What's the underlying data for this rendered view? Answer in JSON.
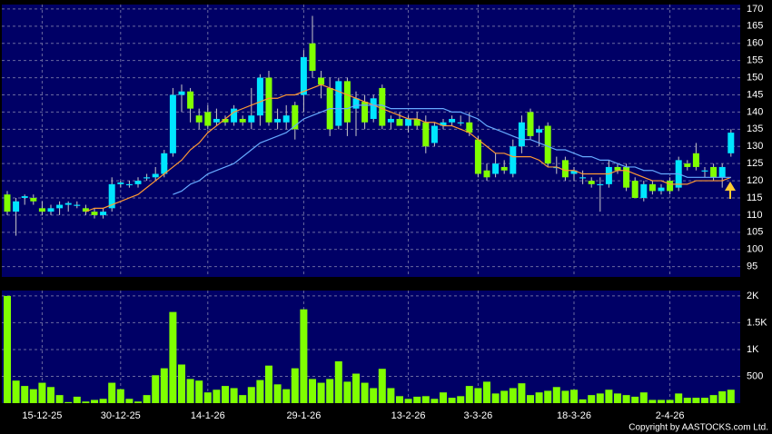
{
  "chart_data": [
    {
      "type": "candlestick",
      "open": [
        116,
        111,
        115,
        115,
        112,
        111,
        112,
        113,
        113,
        112,
        111,
        110,
        112,
        119,
        119,
        119,
        121,
        121,
        122,
        128,
        145,
        146,
        139,
        140,
        137,
        138,
        137,
        138,
        137,
        139,
        150,
        137,
        137,
        142,
        145,
        160,
        150,
        147,
        136,
        149,
        141,
        143,
        138,
        147,
        137,
        138,
        136,
        138,
        137,
        131,
        136,
        137,
        137,
        137,
        132,
        123,
        122,
        124,
        122,
        130,
        140,
        134,
        136,
        124,
        126,
        122,
        121,
        120,
        119,
        119,
        124,
        124,
        120,
        115,
        119,
        117,
        120,
        118,
        125,
        128,
        123,
        124,
        121,
        128
      ],
      "high": [
        117,
        115,
        116,
        116,
        114,
        113,
        114,
        114,
        114,
        113,
        112,
        112,
        121,
        120,
        120,
        121,
        122,
        124,
        129,
        147,
        148,
        147,
        141,
        142,
        141,
        139,
        142,
        139,
        147,
        151,
        152,
        141,
        142,
        143,
        158,
        168,
        152,
        150,
        150,
        150,
        146,
        145,
        145,
        148,
        139,
        140,
        139,
        140,
        139,
        137,
        138,
        139,
        139,
        140,
        133,
        125,
        128,
        126,
        132,
        139,
        141,
        136,
        137,
        127,
        127,
        124,
        123,
        121,
        121,
        126,
        125,
        125,
        121,
        120,
        120,
        119,
        121,
        127,
        126,
        131,
        124,
        125,
        125,
        135
      ],
      "low": [
        110,
        104,
        113,
        113,
        110,
        110,
        110,
        111,
        112,
        110,
        109,
        109,
        111,
        118,
        118,
        118,
        120,
        120,
        121,
        127,
        140,
        137,
        135,
        135,
        136,
        136,
        136,
        136,
        135,
        136,
        136,
        135,
        135,
        132,
        140,
        150,
        144,
        133,
        135,
        133,
        133,
        135,
        137,
        135,
        135,
        136,
        134,
        135,
        128,
        130,
        135,
        136,
        136,
        133,
        121,
        120,
        121,
        122,
        121,
        128,
        132,
        130,
        124,
        122,
        120,
        120,
        119,
        118,
        111,
        118,
        122,
        117,
        115,
        114,
        116,
        116,
        116,
        117,
        123,
        123,
        121,
        120,
        118,
        127
      ],
      "close": [
        111,
        114,
        115.5,
        114,
        111,
        112,
        113,
        113.5,
        113,
        111,
        110,
        111,
        119,
        119.5,
        119,
        120,
        121,
        122,
        128,
        145,
        146,
        141,
        137,
        136,
        138,
        137,
        141,
        137,
        139,
        150,
        137,
        138,
        139,
        135,
        156,
        152,
        148,
        135,
        149,
        137,
        144,
        137,
        144,
        136,
        138,
        136,
        138,
        136,
        130,
        136,
        137,
        138,
        137,
        134,
        122,
        121,
        125,
        123,
        130,
        137,
        133,
        135,
        125,
        124,
        121,
        123,
        121,
        119,
        119,
        124,
        123,
        118,
        115,
        119,
        117,
        118,
        117,
        126,
        124,
        124,
        123,
        121,
        124,
        134
      ],
      "up_color": "#00e5ff",
      "down_color": "#80ff00",
      "lines": [
        {
          "color": "#ff9933",
          "values": [
            null,
            null,
            null,
            null,
            null,
            null,
            null,
            null,
            null,
            111,
            112,
            112,
            113,
            114,
            115,
            116,
            118,
            120,
            122,
            124,
            126,
            129,
            131,
            134,
            136,
            138,
            140,
            141,
            142,
            143,
            144,
            144,
            145,
            145,
            146,
            147,
            148,
            147,
            146,
            145,
            144,
            143,
            142,
            141,
            140,
            139,
            138,
            138,
            137,
            137,
            136,
            136,
            135,
            134,
            132,
            130,
            128,
            128,
            127,
            127,
            127,
            126,
            124,
            124,
            123,
            123,
            122,
            122,
            122,
            122,
            123,
            123,
            122,
            121,
            120,
            120,
            119,
            119,
            119,
            120,
            120,
            120,
            120,
            121
          ]
        },
        {
          "color": "#66aaff",
          "values": [
            null,
            null,
            null,
            null,
            null,
            null,
            null,
            null,
            null,
            null,
            null,
            null,
            null,
            null,
            null,
            null,
            null,
            null,
            null,
            116,
            117,
            119,
            120,
            122,
            123,
            124,
            125,
            127,
            129,
            131,
            132,
            133,
            134,
            136,
            138,
            139,
            140,
            141,
            141,
            141,
            142,
            142,
            142,
            142,
            141,
            141,
            141,
            141,
            141,
            141,
            141,
            140,
            140,
            139,
            138,
            136,
            135,
            134,
            133,
            132,
            132,
            131,
            130,
            129,
            129,
            128,
            127,
            127,
            126,
            126,
            125,
            124,
            124,
            123,
            123,
            122,
            122,
            122,
            121,
            121,
            121,
            121,
            121,
            121
          ]
        }
      ],
      "ylim": [
        92,
        171.3
      ],
      "yticks": [
        95,
        100,
        105,
        110,
        115,
        120,
        125,
        130,
        135,
        140,
        145,
        150,
        155,
        160,
        165,
        170
      ],
      "grid": true
    },
    {
      "type": "bar",
      "categories": [
        null,
        null,
        null,
        null,
        "15-12-25",
        null,
        null,
        null,
        null,
        null,
        null,
        null,
        null,
        "30-12-25",
        null,
        null,
        null,
        null,
        null,
        null,
        null,
        null,
        null,
        "14-1-26",
        null,
        null,
        null,
        null,
        null,
        null,
        null,
        null,
        null,
        null,
        "29-1-26",
        null,
        null,
        null,
        null,
        null,
        null,
        null,
        null,
        null,
        null,
        null,
        "13-2-26",
        null,
        null,
        null,
        null,
        null,
        null,
        null,
        "3-3-26",
        null,
        null,
        null,
        null,
        null,
        null,
        null,
        null,
        null,
        null,
        "18-3-26",
        null,
        null,
        null,
        null,
        null,
        null,
        null,
        null,
        null,
        null,
        "2-4-26",
        null,
        null,
        null,
        null,
        null,
        null,
        null
      ],
      "values": [
        2000,
        420,
        320,
        260,
        380,
        300,
        150,
        20,
        120,
        30,
        60,
        80,
        380,
        260,
        80,
        30,
        150,
        520,
        650,
        1700,
        720,
        450,
        420,
        200,
        250,
        320,
        280,
        150,
        300,
        430,
        700,
        350,
        260,
        650,
        1750,
        450,
        380,
        450,
        780,
        400,
        550,
        380,
        280,
        640,
        280,
        130,
        80,
        120,
        130,
        80,
        200,
        100,
        130,
        320,
        280,
        400,
        180,
        230,
        280,
        370,
        150,
        200,
        230,
        300,
        230,
        250,
        70,
        150,
        180,
        250,
        180,
        150,
        120,
        200,
        60,
        60,
        60,
        180,
        100,
        100,
        100,
        150,
        220,
        250
      ],
      "color": "#80ff00",
      "ylim": [
        0,
        2100
      ],
      "yticks": [
        500,
        {
          "value": 1000,
          "label": "1K"
        },
        {
          "value": 1500,
          "label": "1.5K"
        },
        {
          "value": 2000,
          "label": "2K"
        }
      ],
      "grid": true,
      "copyright": "Copyright by AASTOCKS.com Ltd."
    }
  ]
}
